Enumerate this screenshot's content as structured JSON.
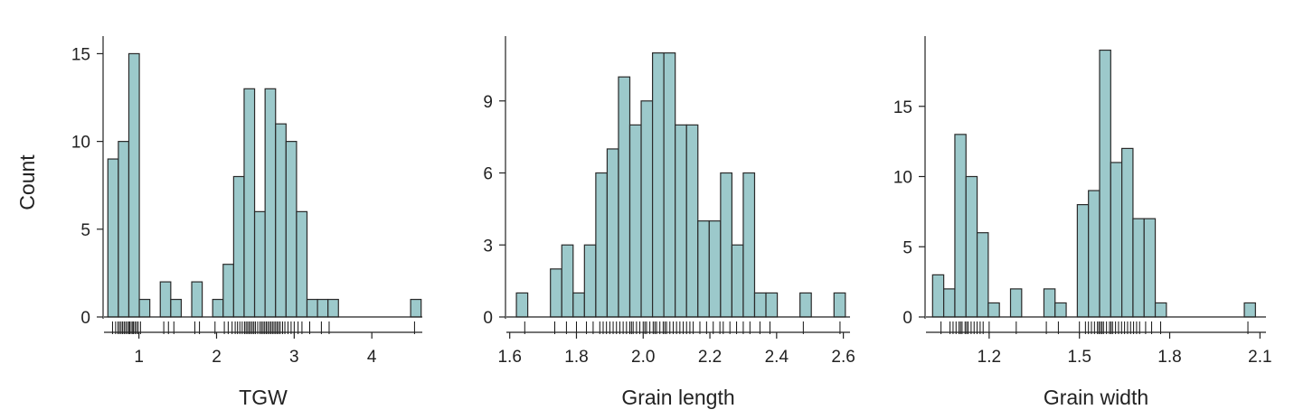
{
  "colors": {
    "bar_fill": "#9cc9cb",
    "bar_stroke": "#2a2a2a",
    "axis": "#222222"
  },
  "shared_ylabel": "Count",
  "chart_data": [
    {
      "type": "bar",
      "xlabel": "TGW",
      "ylabel": "Count",
      "xlim": [
        0.55,
        4.65
      ],
      "ylim": [
        0,
        16
      ],
      "xticks": [
        1,
        2,
        3,
        4
      ],
      "xtick_labels": [
        "1",
        "2",
        "3",
        "4"
      ],
      "yticks": [
        0,
        5,
        10,
        15
      ],
      "ytick_labels": [
        "0",
        "5",
        "10",
        "15"
      ],
      "bin_width": 0.135,
      "bins": [
        {
          "start": 0.6,
          "count": 9
        },
        {
          "start": 0.735,
          "count": 10
        },
        {
          "start": 0.87,
          "count": 15
        },
        {
          "start": 1.005,
          "count": 1
        },
        {
          "start": 1.275,
          "count": 2
        },
        {
          "start": 1.41,
          "count": 1
        },
        {
          "start": 1.68,
          "count": 2
        },
        {
          "start": 1.95,
          "count": 1
        },
        {
          "start": 2.085,
          "count": 3
        },
        {
          "start": 2.22,
          "count": 8
        },
        {
          "start": 2.355,
          "count": 13
        },
        {
          "start": 2.49,
          "count": 6
        },
        {
          "start": 2.625,
          "count": 13
        },
        {
          "start": 2.76,
          "count": 11
        },
        {
          "start": 2.895,
          "count": 10
        },
        {
          "start": 3.03,
          "count": 6
        },
        {
          "start": 3.165,
          "count": 1
        },
        {
          "start": 3.3,
          "count": 1
        },
        {
          "start": 3.435,
          "count": 1
        },
        {
          "start": 4.5,
          "count": 1
        }
      ],
      "rug": [
        0.66,
        0.7,
        0.73,
        0.75,
        0.77,
        0.79,
        0.81,
        0.83,
        0.85,
        0.87,
        0.88,
        0.9,
        0.92,
        0.93,
        0.95,
        0.97,
        0.99,
        1.02,
        1.32,
        1.38,
        1.45,
        1.72,
        1.78,
        1.98,
        2.1,
        2.15,
        2.2,
        2.24,
        2.27,
        2.3,
        2.33,
        2.36,
        2.38,
        2.4,
        2.42,
        2.44,
        2.46,
        2.48,
        2.5,
        2.53,
        2.56,
        2.58,
        2.6,
        2.62,
        2.64,
        2.66,
        2.68,
        2.7,
        2.72,
        2.74,
        2.76,
        2.78,
        2.8,
        2.82,
        2.85,
        2.88,
        2.92,
        2.96,
        3.0,
        3.05,
        3.1,
        3.2,
        3.35,
        3.45,
        4.55
      ]
    },
    {
      "type": "bar",
      "xlabel": "Grain length",
      "ylabel": "",
      "xlim": [
        1.59,
        2.62
      ],
      "ylim": [
        0,
        11.7
      ],
      "xticks": [
        1.6,
        1.8,
        2.0,
        2.2,
        2.4,
        2.6
      ],
      "xtick_labels": [
        "1.6",
        "1.8",
        "2.0",
        "2.2",
        "2.4",
        "2.6"
      ],
      "yticks": [
        0,
        3,
        6,
        9
      ],
      "ytick_labels": [
        "0",
        "3",
        "6",
        "9"
      ],
      "bin_width": 0.034,
      "bins": [
        {
          "start": 1.62,
          "count": 1
        },
        {
          "start": 1.722,
          "count": 2
        },
        {
          "start": 1.756,
          "count": 3
        },
        {
          "start": 1.79,
          "count": 1
        },
        {
          "start": 1.824,
          "count": 3
        },
        {
          "start": 1.858,
          "count": 6
        },
        {
          "start": 1.892,
          "count": 7
        },
        {
          "start": 1.926,
          "count": 10
        },
        {
          "start": 1.96,
          "count": 8
        },
        {
          "start": 1.994,
          "count": 9
        },
        {
          "start": 2.028,
          "count": 11
        },
        {
          "start": 2.062,
          "count": 11
        },
        {
          "start": 2.096,
          "count": 8
        },
        {
          "start": 2.13,
          "count": 8
        },
        {
          "start": 2.164,
          "count": 4
        },
        {
          "start": 2.198,
          "count": 4
        },
        {
          "start": 2.232,
          "count": 6
        },
        {
          "start": 2.266,
          "count": 3
        },
        {
          "start": 2.3,
          "count": 6
        },
        {
          "start": 2.334,
          "count": 1
        },
        {
          "start": 2.368,
          "count": 1
        },
        {
          "start": 2.47,
          "count": 1
        },
        {
          "start": 2.572,
          "count": 1
        }
      ],
      "rug": [
        1.645,
        1.735,
        1.77,
        1.8,
        1.83,
        1.85,
        1.87,
        1.88,
        1.89,
        1.9,
        1.91,
        1.92,
        1.93,
        1.94,
        1.95,
        1.96,
        1.965,
        1.97,
        1.98,
        1.99,
        2.0,
        2.005,
        2.01,
        2.02,
        2.03,
        2.035,
        2.04,
        2.05,
        2.06,
        2.065,
        2.07,
        2.08,
        2.09,
        2.1,
        2.11,
        2.12,
        2.13,
        2.14,
        2.15,
        2.17,
        2.19,
        2.21,
        2.23,
        2.24,
        2.26,
        2.28,
        2.3,
        2.32,
        2.35,
        2.38,
        2.48,
        2.59
      ]
    },
    {
      "type": "bar",
      "xlabel": "Grain width",
      "ylabel": "",
      "xlim": [
        0.99,
        2.12
      ],
      "ylim": [
        0,
        20
      ],
      "xticks": [
        1.2,
        1.5,
        1.8,
        2.1
      ],
      "xtick_labels": [
        "1.2",
        "1.5",
        "1.8",
        "2.1"
      ],
      "yticks": [
        0,
        5,
        10,
        15
      ],
      "yticks_labels_note": "",
      "ytick_labels": [
        "0",
        "5",
        "10",
        "15"
      ],
      "bin_width": 0.037,
      "bins": [
        {
          "start": 1.012,
          "count": 3
        },
        {
          "start": 1.049,
          "count": 2
        },
        {
          "start": 1.086,
          "count": 13
        },
        {
          "start": 1.123,
          "count": 10
        },
        {
          "start": 1.16,
          "count": 6
        },
        {
          "start": 1.197,
          "count": 1
        },
        {
          "start": 1.271,
          "count": 2
        },
        {
          "start": 1.382,
          "count": 2
        },
        {
          "start": 1.419,
          "count": 1
        },
        {
          "start": 1.493,
          "count": 8
        },
        {
          "start": 1.53,
          "count": 9
        },
        {
          "start": 1.567,
          "count": 19
        },
        {
          "start": 1.604,
          "count": 11
        },
        {
          "start": 1.641,
          "count": 12
        },
        {
          "start": 1.678,
          "count": 7
        },
        {
          "start": 1.715,
          "count": 7
        },
        {
          "start": 1.752,
          "count": 1
        },
        {
          "start": 2.048,
          "count": 1
        }
      ],
      "rug": [
        1.04,
        1.07,
        1.08,
        1.09,
        1.1,
        1.105,
        1.11,
        1.12,
        1.125,
        1.13,
        1.14,
        1.15,
        1.16,
        1.17,
        1.18,
        1.2,
        1.29,
        1.39,
        1.43,
        1.5,
        1.52,
        1.53,
        1.54,
        1.55,
        1.56,
        1.565,
        1.57,
        1.575,
        1.58,
        1.59,
        1.6,
        1.605,
        1.61,
        1.62,
        1.63,
        1.64,
        1.65,
        1.66,
        1.67,
        1.68,
        1.69,
        1.7,
        1.72,
        1.74,
        1.77,
        2.06
      ]
    }
  ]
}
